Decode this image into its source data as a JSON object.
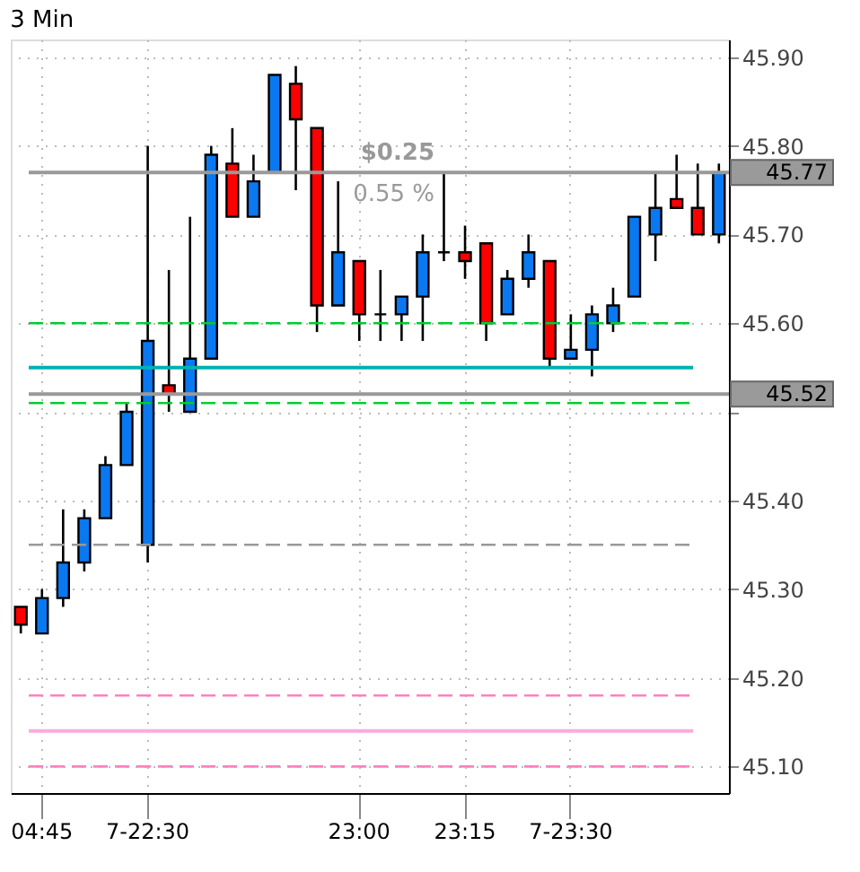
{
  "chart_data": {
    "type": "candlestick",
    "title": "3 Min",
    "categories": [
      null,
      "04:45",
      null,
      null,
      null,
      null,
      "7-22:30",
      null,
      null,
      null,
      null,
      null,
      null,
      null,
      null,
      null,
      "23:00",
      null,
      null,
      null,
      null,
      "23:15",
      null,
      null,
      null,
      null,
      "7-23:30",
      null,
      null,
      null,
      null,
      null,
      null,
      null
    ],
    "ohlc": [
      [
        45.28,
        45.28,
        45.25,
        45.26
      ],
      [
        45.25,
        45.3,
        45.25,
        45.29
      ],
      [
        45.29,
        45.39,
        45.28,
        45.33
      ],
      [
        45.33,
        45.39,
        45.32,
        45.38
      ],
      [
        45.38,
        45.45,
        45.38,
        45.44
      ],
      [
        45.44,
        45.51,
        45.44,
        45.5
      ],
      [
        45.35,
        45.8,
        45.33,
        45.58
      ],
      [
        45.53,
        45.66,
        45.5,
        45.52
      ],
      [
        45.5,
        45.72,
        45.5,
        45.56
      ],
      [
        45.56,
        45.8,
        45.56,
        45.79
      ],
      [
        45.78,
        45.82,
        45.72,
        45.72
      ],
      [
        45.72,
        45.79,
        45.72,
        45.76
      ],
      [
        45.77,
        45.88,
        45.77,
        45.88
      ],
      [
        45.87,
        45.89,
        45.75,
        45.83
      ],
      [
        45.82,
        45.82,
        45.59,
        45.62
      ],
      [
        45.62,
        45.76,
        45.62,
        45.68
      ],
      [
        45.67,
        45.67,
        45.58,
        45.61
      ],
      [
        45.61,
        45.66,
        45.58,
        45.61
      ],
      [
        45.61,
        45.63,
        45.58,
        45.63
      ],
      [
        45.63,
        45.7,
        45.58,
        45.68
      ],
      [
        45.68,
        45.77,
        45.67,
        45.68
      ],
      [
        45.68,
        45.71,
        45.65,
        45.67
      ],
      [
        45.69,
        45.69,
        45.58,
        45.6
      ],
      [
        45.61,
        45.66,
        45.61,
        45.65
      ],
      [
        45.65,
        45.7,
        45.64,
        45.68
      ],
      [
        45.67,
        45.67,
        45.55,
        45.56
      ],
      [
        45.56,
        45.61,
        45.56,
        45.57
      ],
      [
        45.57,
        45.62,
        45.54,
        45.61
      ],
      [
        45.6,
        45.64,
        45.59,
        45.62
      ],
      [
        45.63,
        45.72,
        45.63,
        45.72
      ],
      [
        45.7,
        45.77,
        45.67,
        45.73
      ],
      [
        45.74,
        45.79,
        45.73,
        45.73
      ],
      [
        45.73,
        45.78,
        45.7,
        45.7
      ],
      [
        45.7,
        45.78,
        45.69,
        45.77
      ]
    ],
    "colors": [
      "#ff0000",
      "#0a78f0",
      "#0a78f0",
      "#0a78f0",
      "#0a78f0",
      "#0a78f0",
      "#0a78f0",
      "#ff0000",
      "#0a78f0",
      "#0a78f0",
      "#ff0000",
      "#0a78f0",
      "#0a78f0",
      "#ff0000",
      "#ff0000",
      "#0a78f0",
      "#ff0000",
      "#000000",
      "#0a78f0",
      "#0a78f0",
      "#000000",
      "#ff0000",
      "#ff0000",
      "#0a78f0",
      "#0a78f0",
      "#ff0000",
      "#0a78f0",
      "#0a78f0",
      "#0a78f0",
      "#0a78f0",
      "#0a78f0",
      "#ff0000",
      "#ff0000",
      "#0a78f0"
    ],
    "ylim": [
      45.07,
      45.92
    ],
    "yticks": [
      {
        "value": 45.1,
        "label": "45.10"
      },
      {
        "value": 45.2,
        "label": "45.20"
      },
      {
        "value": 45.3,
        "label": "45.30"
      },
      {
        "value": 45.4,
        "label": "45.40"
      },
      {
        "value": 45.5,
        "label": null
      },
      {
        "value": 45.6,
        "label": "45.60"
      },
      {
        "value": 45.7,
        "label": "45.70"
      },
      {
        "value": 45.8,
        "label": "45.80"
      },
      {
        "value": 45.9,
        "label": "45.90"
      }
    ],
    "ref_lines": [
      {
        "axis": "y",
        "value": 45.6,
        "color": "#00cc33",
        "line_style": "dashed"
      },
      {
        "axis": "y",
        "value": 45.51,
        "color": "#00cc33",
        "line_style": "dashed"
      },
      {
        "axis": "y",
        "value": 45.55,
        "color": "#00b0b0",
        "line_style": "solid"
      },
      {
        "axis": "y",
        "value": 45.35,
        "color": "#999999",
        "line_style": "dashed"
      },
      {
        "axis": "y",
        "value": 45.18,
        "color": "#ff80c0",
        "line_style": "dashed"
      },
      {
        "axis": "y",
        "value": 45.14,
        "color": "#ffaadd",
        "line_style": "solid"
      },
      {
        "axis": "y",
        "value": 45.1,
        "color": "#ff80c0",
        "line_style": "dashed"
      },
      {
        "axis": "y",
        "value": 45.77,
        "label": "45.77",
        "color": "#999999",
        "line_style": "solid"
      },
      {
        "axis": "y",
        "value": 45.52,
        "label": "45.52",
        "color": "#999999",
        "line_style": "solid"
      }
    ],
    "annotations": [
      "$0.25",
      "0.55 %"
    ],
    "grid": true
  }
}
